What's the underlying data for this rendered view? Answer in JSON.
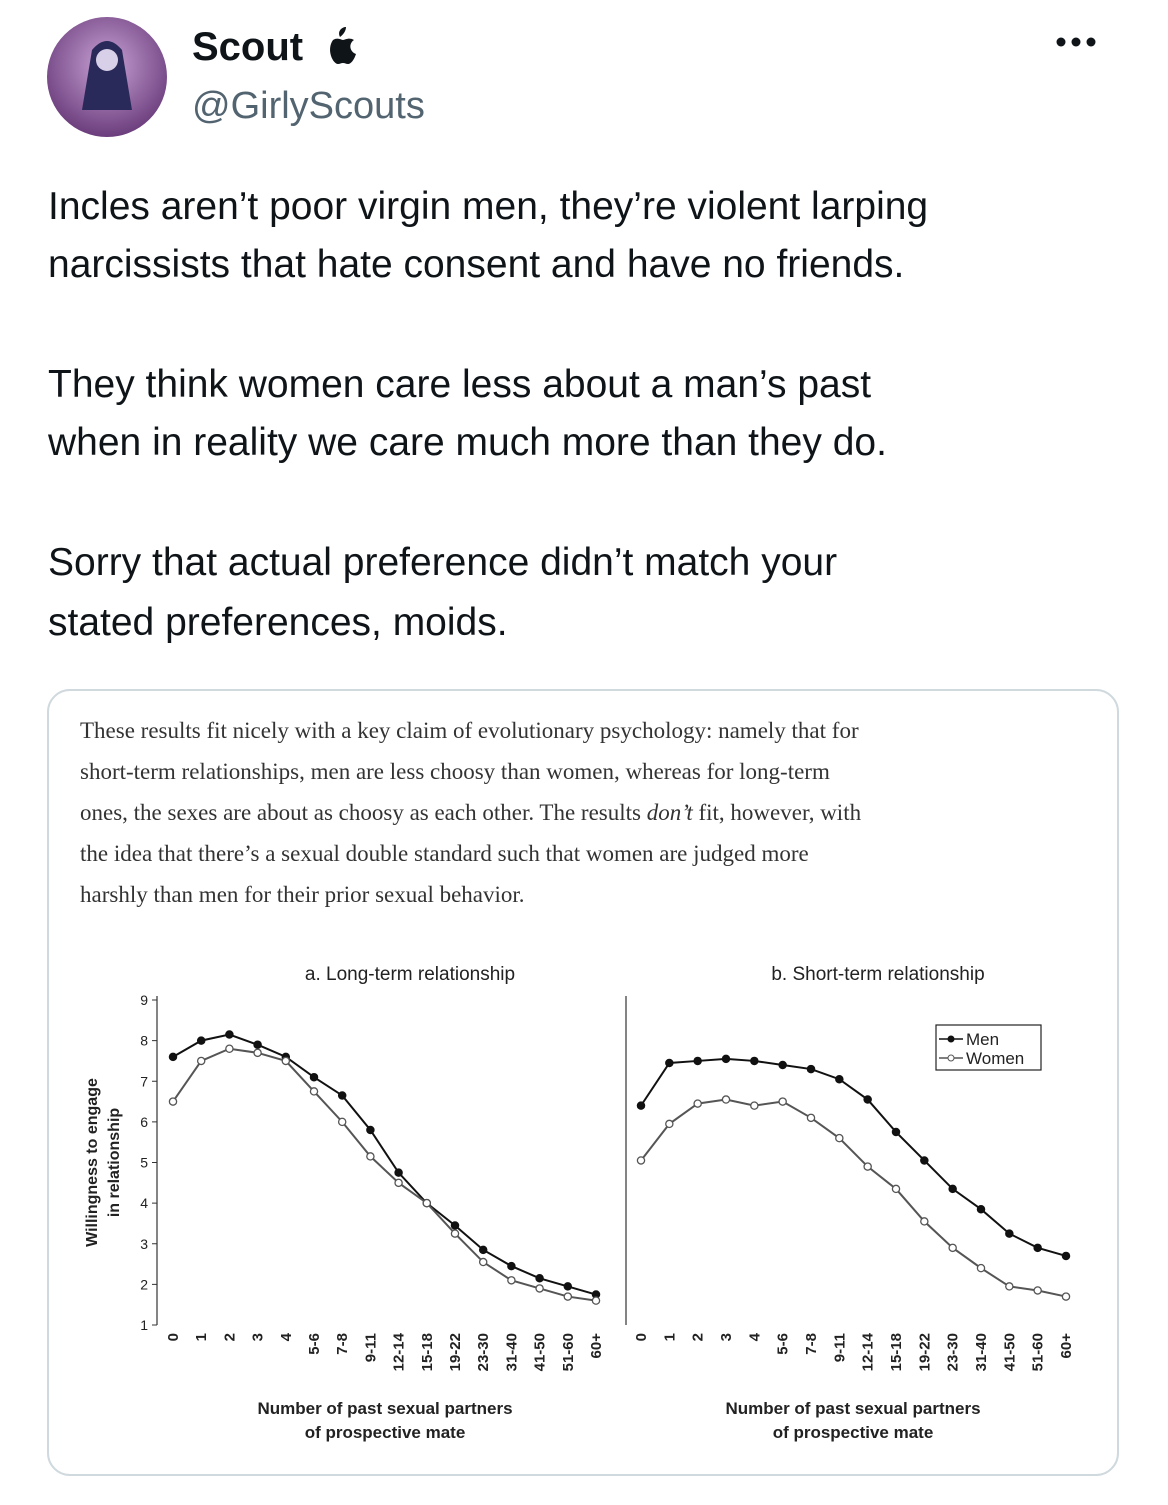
{
  "tweet": {
    "name": "Scout",
    "handle": "@GirlyScouts",
    "paragraphs": [
      [
        "Incles aren’t poor virgin men, they’re violent larping",
        "narcissists that hate consent and have no friends."
      ],
      [
        "They think women care less about a man’s past",
        "when in reality we care much more than they do."
      ],
      [
        "Sorry that actual preference didn’t match your",
        "stated preferences, moids."
      ]
    ]
  },
  "excerpt": {
    "lines": [
      "These results fit nicely with a key claim of evolutionary psychology: namely that for",
      "short-term relationships, men are less choosy than women, whereas for long-term",
      {
        "before": "ones, the sexes are about as choosy as each other. The results ",
        "italic": "don’t",
        "after": " fit, however, with"
      },
      "the idea that there’s a sexual double standard such that women are judged more",
      "harshly than men for their prior sexual behavior."
    ]
  },
  "chart_data": [
    {
      "type": "line",
      "title": "a. Long-term relationship",
      "ylabel": [
        "Willingness to engage",
        "in relationship"
      ],
      "xlabel": [
        "Number of past sexual partners",
        "of prospective mate"
      ],
      "categories": [
        "0",
        "1",
        "2",
        "3",
        "4",
        "5-6",
        "7-8",
        "9-11",
        "12-14",
        "15-18",
        "19-22",
        "23-30",
        "31-40",
        "41-50",
        "51-60",
        "60+"
      ],
      "ylim": [
        1,
        9
      ],
      "yticks": [
        1,
        2,
        3,
        4,
        5,
        6,
        7,
        8,
        9
      ],
      "series": [
        {
          "color": "#111111",
          "marker_fill": "#111111",
          "values": [
            7.6,
            8.0,
            8.15,
            7.9,
            7.6,
            7.1,
            6.65,
            5.8,
            4.75,
            4.0,
            3.45,
            2.85,
            2.45,
            2.15,
            1.95,
            1.75
          ]
        },
        {
          "color": "#555555",
          "marker_fill": "#ffffff",
          "values": [
            6.5,
            7.5,
            7.8,
            7.7,
            7.5,
            6.75,
            6.0,
            5.15,
            4.5,
            4.0,
            3.25,
            2.55,
            2.1,
            1.9,
            1.7,
            1.6
          ]
        }
      ]
    },
    {
      "type": "line",
      "title": "b. Short-term relationship",
      "xlabel": [
        "Number of past sexual partners",
        "of prospective mate"
      ],
      "categories": [
        "0",
        "1",
        "2",
        "3",
        "4",
        "5-6",
        "7-8",
        "9-11",
        "12-14",
        "15-18",
        "19-22",
        "23-30",
        "31-40",
        "41-50",
        "51-60",
        "60+"
      ],
      "ylim": [
        1,
        9
      ],
      "legend": "upper right",
      "series": [
        {
          "name": "Men",
          "color": "#111111",
          "marker_fill": "#111111",
          "values": [
            6.4,
            7.45,
            7.5,
            7.55,
            7.5,
            7.4,
            7.3,
            7.05,
            6.55,
            5.75,
            5.05,
            4.35,
            3.85,
            3.25,
            2.9,
            2.7
          ]
        },
        {
          "name": "Women",
          "color": "#555555",
          "marker_fill": "#ffffff",
          "values": [
            5.05,
            5.95,
            6.45,
            6.55,
            6.4,
            6.5,
            6.1,
            5.6,
            4.9,
            4.35,
            3.55,
            2.9,
            2.4,
            1.95,
            1.85,
            1.7
          ]
        }
      ]
    }
  ]
}
